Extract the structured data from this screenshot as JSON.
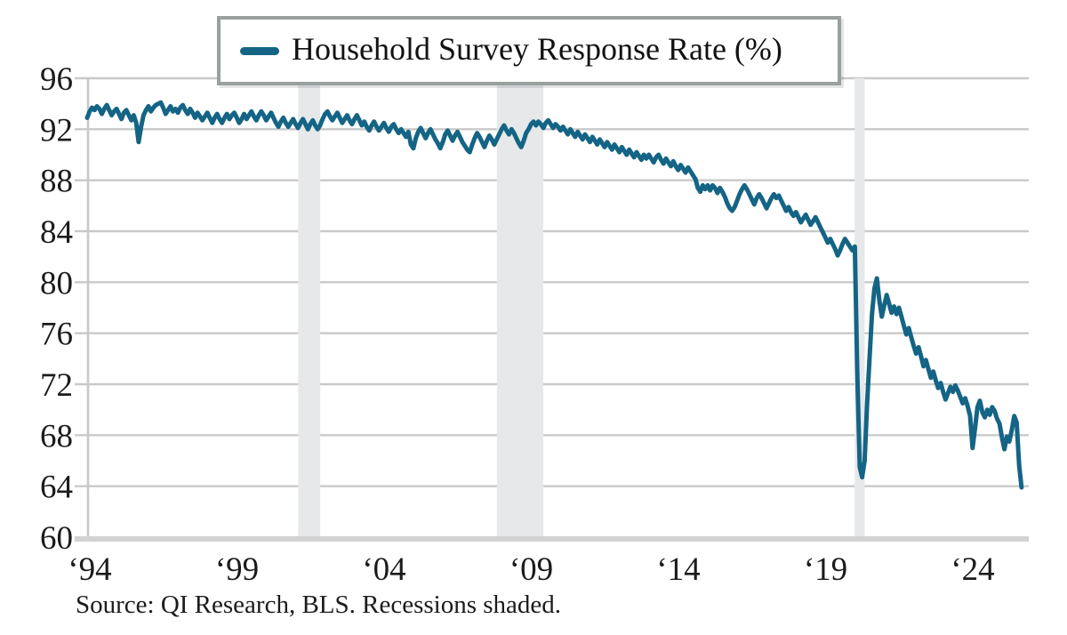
{
  "legend": {
    "label": "Household Survey Response Rate (%)"
  },
  "footer": {
    "source_note": "Source: QI Research, BLS. Recessions shaded."
  },
  "colors": {
    "line": "#146485",
    "grid": "#c9c9c9",
    "axis_bottom": "#d2d2d2",
    "band": "#e6e8ea",
    "text": "#1b1b1b",
    "legend_border": "#9aa09d"
  },
  "chart_data": {
    "type": "line",
    "title": "",
    "legend_position": "top",
    "series_name": "Household Survey Response Rate (%)",
    "frequency": "monthly",
    "x_start_year": 1994,
    "x_start_month": 1,
    "x_end_year": 2025,
    "x_end_month": 10,
    "ylim": [
      60,
      96
    ],
    "yticks": [
      60,
      64,
      68,
      72,
      76,
      80,
      84,
      88,
      92,
      96
    ],
    "ytick_labels": [
      "60",
      "64",
      "68",
      "72",
      "76",
      "80",
      "84",
      "88",
      "92",
      "96"
    ],
    "xtick_years": [
      1994,
      1999,
      2004,
      2009,
      2014,
      2019,
      2024
    ],
    "xtick_labels": [
      "‘94",
      "‘99",
      "‘04",
      "‘09",
      "‘14",
      "‘19",
      "‘24"
    ],
    "grid": "horizontal",
    "recessions_shaded": [
      [
        2001.17,
        2001.92
      ],
      [
        2007.92,
        2009.5
      ],
      [
        2020.08,
        2020.42
      ]
    ],
    "values": [
      92.9,
      93.4,
      93.7,
      93.5,
      93.8,
      93.6,
      93.2,
      93.6,
      93.9,
      93.5,
      93.1,
      93.4,
      93.6,
      93.2,
      92.8,
      93.3,
      93.5,
      93.1,
      92.7,
      93.1,
      92.5,
      91.0,
      92.2,
      93.1,
      93.5,
      93.8,
      93.4,
      93.7,
      93.9,
      94.0,
      94.1,
      93.7,
      93.2,
      93.5,
      93.8,
      93.4,
      93.6,
      93.3,
      93.7,
      93.9,
      93.5,
      93.2,
      93.6,
      93.3,
      92.9,
      93.3,
      93.0,
      92.7,
      93.0,
      93.3,
      92.9,
      92.5,
      92.9,
      93.2,
      92.8,
      92.5,
      92.9,
      93.2,
      92.8,
      93.1,
      93.3,
      92.9,
      92.5,
      92.8,
      93.2,
      92.8,
      93.1,
      93.4,
      93.0,
      92.7,
      93.1,
      93.4,
      93.1,
      92.7,
      93.0,
      93.3,
      92.9,
      92.5,
      92.2,
      92.6,
      92.9,
      92.5,
      92.2,
      92.5,
      92.8,
      92.4,
      92.1,
      92.5,
      92.8,
      92.4,
      92.0,
      92.4,
      92.7,
      92.3,
      92.0,
      92.3,
      92.8,
      93.2,
      93.4,
      93.0,
      92.7,
      93.0,
      93.3,
      92.9,
      92.5,
      92.8,
      93.1,
      92.7,
      92.4,
      92.8,
      93.1,
      92.7,
      92.3,
      92.6,
      92.2,
      91.9,
      92.3,
      92.6,
      92.2,
      91.9,
      92.2,
      92.5,
      92.1,
      91.8,
      92.2,
      92.4,
      92.0,
      91.7,
      92.0,
      91.7,
      91.4,
      91.8,
      90.8,
      90.5,
      91.3,
      91.8,
      92.1,
      91.7,
      91.3,
      91.7,
      92.0,
      91.6,
      91.2,
      90.9,
      90.5,
      91.0,
      91.6,
      91.9,
      91.5,
      91.1,
      91.5,
      91.8,
      91.4,
      91.0,
      90.7,
      90.4,
      90.2,
      90.8,
      91.3,
      91.7,
      91.4,
      91.0,
      90.6,
      91.1,
      91.5,
      91.2,
      90.8,
      91.2,
      91.6,
      92.0,
      92.3,
      91.9,
      91.6,
      92.0,
      91.7,
      91.3,
      90.9,
      90.6,
      91.1,
      91.7,
      92.0,
      92.4,
      92.6,
      92.3,
      92.6,
      92.4,
      92.1,
      92.5,
      92.7,
      92.4,
      92.1,
      92.4,
      92.2,
      91.9,
      92.2,
      91.9,
      91.6,
      92.0,
      91.7,
      91.4,
      91.8,
      91.5,
      91.2,
      91.6,
      91.3,
      91.0,
      91.4,
      91.1,
      90.8,
      91.2,
      90.9,
      90.6,
      91.0,
      90.7,
      90.4,
      90.8,
      90.5,
      90.2,
      90.6,
      90.3,
      90.0,
      90.4,
      90.1,
      89.8,
      90.2,
      89.9,
      89.6,
      90.0,
      89.7,
      90.0,
      89.7,
      89.4,
      89.8,
      90.0,
      89.6,
      89.3,
      89.7,
      89.4,
      89.1,
      89.5,
      89.1,
      88.8,
      89.2,
      88.9,
      88.6,
      89.0,
      88.7,
      88.4,
      88.1,
      87.4,
      87.1,
      87.6,
      87.3,
      87.6,
      87.2,
      87.6,
      87.4,
      87.0,
      87.4,
      87.1,
      86.7,
      86.2,
      85.8,
      85.6,
      85.9,
      86.4,
      86.9,
      87.3,
      87.6,
      87.3,
      86.9,
      86.5,
      86.1,
      86.6,
      86.9,
      86.6,
      86.2,
      85.8,
      86.2,
      86.6,
      86.9,
      86.6,
      86.8,
      86.4,
      86.0,
      85.6,
      85.9,
      85.5,
      85.2,
      85.5,
      85.1,
      84.7,
      85.0,
      85.3,
      84.9,
      84.5,
      84.8,
      85.1,
      84.7,
      84.3,
      83.9,
      83.5,
      83.1,
      83.4,
      83.0,
      82.6,
      82.1,
      82.5,
      83.0,
      83.4,
      83.1,
      82.8,
      82.5,
      82.8,
      73.0,
      65.5,
      64.7,
      66.0,
      70.5,
      74.0,
      77.5,
      79.5,
      80.3,
      78.6,
      77.3,
      78.2,
      79.0,
      78.3,
      77.6,
      78.1,
      77.5,
      78.0,
      77.3,
      76.6,
      75.9,
      76.4,
      75.7,
      75.0,
      74.4,
      74.9,
      74.2,
      73.4,
      73.9,
      73.2,
      72.5,
      73.0,
      72.3,
      71.7,
      72.1,
      71.4,
      70.8,
      71.3,
      71.8,
      71.4,
      71.9,
      71.5,
      71.0,
      70.5,
      70.9,
      70.3,
      69.5,
      67.0,
      68.5,
      70.2,
      70.7,
      69.8,
      69.4,
      70.0,
      69.6,
      70.2,
      69.9,
      69.3,
      68.9,
      67.8,
      66.9,
      67.9,
      67.5,
      68.4,
      69.5,
      69.0,
      65.6,
      63.9
    ]
  }
}
